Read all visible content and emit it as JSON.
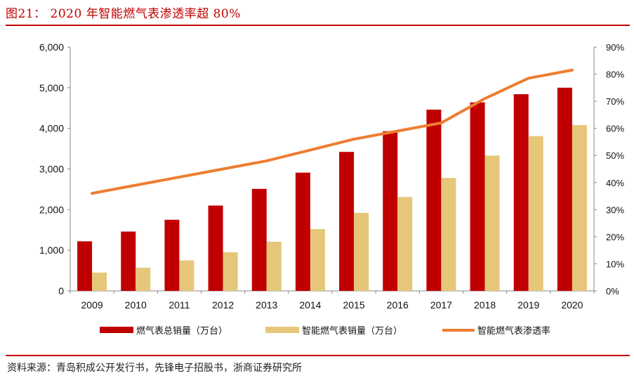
{
  "figure": {
    "title": "图21：  2020 年智能燃气表渗透率超 80%",
    "source": "资料来源：青岛积成公开发行书，先锋电子招股书，浙商证券研究所"
  },
  "colors": {
    "total_bar": "#c00000",
    "smart_bar": "#e6c77a",
    "rate_line": "#ed7d31",
    "accent": "#c00000"
  },
  "chart_data": {
    "type": "bar",
    "title": "",
    "xlabel": "",
    "ylabel": "",
    "categories": [
      "2009",
      "2010",
      "2011",
      "2012",
      "2013",
      "2014",
      "2015",
      "2016",
      "2017",
      "2018",
      "2019",
      "2020"
    ],
    "series": [
      {
        "name": "燃气表总销量（万台）",
        "type": "bar",
        "axis": "left",
        "values": [
          1220,
          1460,
          1750,
          2100,
          2510,
          2910,
          3420,
          3930,
          4460,
          4640,
          4840,
          5000
        ]
      },
      {
        "name": "智能燃气表销量（万台）",
        "type": "bar",
        "axis": "left",
        "values": [
          450,
          570,
          750,
          950,
          1210,
          1520,
          1920,
          2310,
          2780,
          3330,
          3810,
          4080
        ]
      },
      {
        "name": "智能燃气表渗透率",
        "type": "line",
        "axis": "right",
        "values": [
          36,
          39,
          42,
          45,
          48,
          52,
          56,
          59,
          62,
          71,
          78.5,
          81.5
        ]
      }
    ],
    "y_left": {
      "min": 0,
      "max": 6000,
      "ticks": [
        "0",
        "1,000",
        "2,000",
        "3,000",
        "4,000",
        "5,000",
        "6,000"
      ]
    },
    "y_right": {
      "min": 0,
      "max": 90,
      "ticks": [
        "0%",
        "10%",
        "20%",
        "30%",
        "40%",
        "50%",
        "60%",
        "70%",
        "80%",
        "90%"
      ]
    },
    "grid": false,
    "legend_position": "bottom"
  }
}
